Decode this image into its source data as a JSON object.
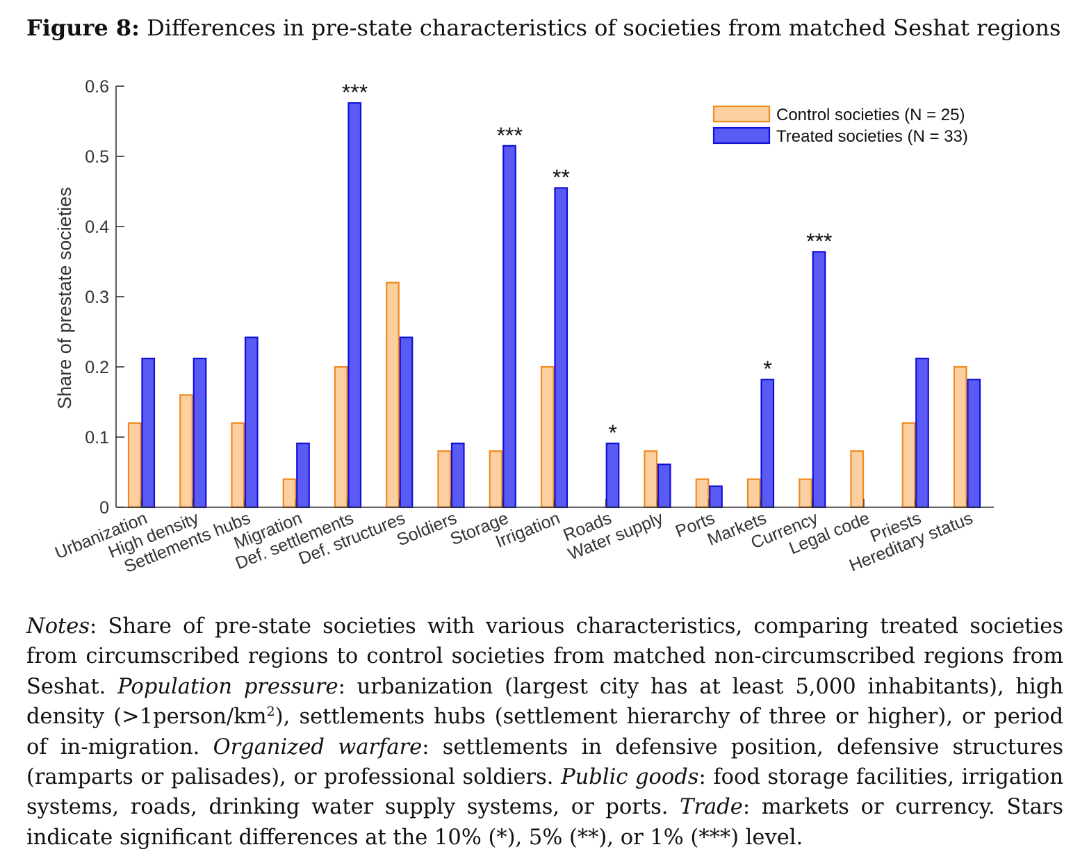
{
  "figure": {
    "label": "Figure 8:",
    "title": "Differences in pre-state characteristics of societies from matched Seshat regions"
  },
  "chart_data": {
    "type": "bar",
    "ylabel": "Share of prestate societies",
    "xlabel": "",
    "ylim": [
      0,
      0.6
    ],
    "yticks": [
      0,
      0.1,
      0.2,
      0.3,
      0.4,
      0.5,
      0.6
    ],
    "ytick_labels": [
      "0",
      "0.1",
      "0.2",
      "0.3",
      "0.4",
      "0.5",
      "0.6"
    ],
    "grid": false,
    "legend_position": "top-right",
    "categories": [
      "Urbanization",
      "High density",
      "Settlements hubs",
      "Migration",
      "Def. settlements",
      "Def. structures",
      "Soldiers",
      "Storage",
      "Irrigation",
      "Roads",
      "Water supply",
      "Ports",
      "Markets",
      "Currency",
      "Legal code",
      "Priests",
      "Hereditary status"
    ],
    "series": [
      {
        "name": "Control societies (N = 25)",
        "color": "#FCCFA0",
        "edge": "#F28A1E",
        "values": [
          0.12,
          0.16,
          0.12,
          0.04,
          0.2,
          0.32,
          0.08,
          0.08,
          0.2,
          0.0,
          0.08,
          0.04,
          0.04,
          0.04,
          0.08,
          0.12,
          0.2
        ]
      },
      {
        "name": "Treated societies (N = 33)",
        "color": "#5A5AF5",
        "edge": "#1010D8",
        "values": [
          0.212,
          0.212,
          0.242,
          0.091,
          0.576,
          0.242,
          0.091,
          0.515,
          0.455,
          0.091,
          0.061,
          0.03,
          0.182,
          0.364,
          0.0,
          0.212,
          0.182
        ]
      }
    ],
    "significance": [
      "",
      "",
      "",
      "",
      "***",
      "",
      "",
      "***",
      "**",
      "*",
      "",
      "",
      "*",
      "***",
      "",
      "",
      ""
    ]
  },
  "notes": {
    "label": "Notes",
    "p1": ": Share of pre-state societies with various characteristics, comparing treated societies from circumscribed regions to control societies from matched non-circumscribed regions from Seshat.",
    "pop_label": "Population pressure",
    "p2": ": urbanization (largest city has at least 5,000 inhabitants), high density (>1person/km",
    "sup": "2",
    "p3": "), settlements hubs (settlement hierarchy of three or higher), or period of in-migration.",
    "war_label": "Organized warfare",
    "p4": ": settlements in defensive position, defensive structures (ramparts or palisades), or professional soldiers.",
    "pub_label": "Public goods",
    "p5": ": food storage facilities, irrigation systems, roads, drinking water supply systems, or ports.",
    "trade_label": "Trade",
    "p6": ": markets or currency. Stars indicate significant differences at the 10% (*), 5% (**), or 1% (***) level."
  }
}
